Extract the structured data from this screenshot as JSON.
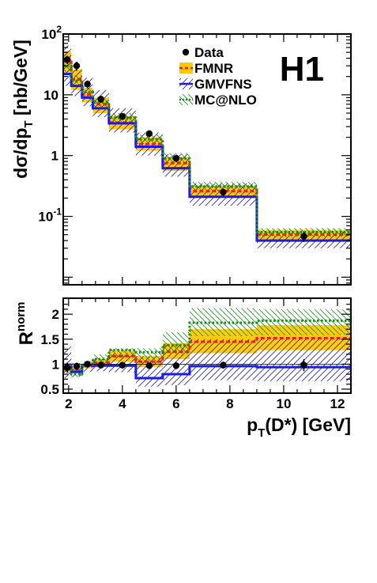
{
  "chart_data": [
    {
      "type": "step-histogram",
      "experiment_label": "H1",
      "ylabel": "dσ/dp_T [nb/GeV]",
      "ylabel_parts": {
        "main": "dσ/dp",
        "sub": "T",
        "unit": " [nb/GeV]"
      },
      "xlim": [
        1.8,
        12.5
      ],
      "ylim": [
        0.0075,
        100
      ],
      "y_scale": "log",
      "y_ticks": [
        {
          "value": 0.1,
          "base": "10",
          "exp": "-1"
        },
        {
          "value": 1,
          "base": "1",
          "exp": ""
        },
        {
          "value": 10,
          "base": "10",
          "exp": ""
        },
        {
          "value": 100,
          "base": "10",
          "exp": "2"
        }
      ],
      "bin_edges": [
        1.8,
        2.1,
        2.5,
        2.9,
        3.5,
        4.5,
        5.5,
        6.5,
        9.0,
        12.5
      ],
      "legend": [
        {
          "name": "Data",
          "style": "marker"
        },
        {
          "name": "FMNR",
          "style": "fmnr"
        },
        {
          "name": "GMVFNS",
          "style": "gmvfns"
        },
        {
          "name": "MC@NLO",
          "style": "mcnlo"
        }
      ],
      "data": {
        "name": "Data",
        "x": [
          1.95,
          2.3,
          2.7,
          3.2,
          4.0,
          5.0,
          6.0,
          7.75,
          10.75
        ],
        "y": [
          38,
          30,
          15,
          8.5,
          4.4,
          2.3,
          0.9,
          0.25,
          0.047
        ],
        "y_err": [
          6,
          5,
          2.2,
          1.1,
          0.55,
          0.3,
          0.12,
          0.035,
          0.009
        ]
      },
      "series": [
        {
          "name": "FMNR",
          "color": "#ffc800",
          "line_color": "#e82020",
          "values": [
            35,
            18,
            10,
            7.0,
            3.5,
            1.55,
            0.75,
            0.26,
            0.05
          ],
          "band_low": [
            21,
            12,
            7.5,
            5.0,
            2.7,
            1.2,
            0.56,
            0.2,
            0.039
          ],
          "band_high": [
            52,
            26,
            13,
            9.0,
            4.5,
            2.0,
            0.95,
            0.32,
            0.06
          ]
        },
        {
          "name": "GMVFNS",
          "color": "#1a1aee",
          "values": [
            22,
            14,
            9.0,
            6.0,
            3.4,
            1.4,
            0.62,
            0.21,
            0.04
          ],
          "band_low": [
            14,
            9.5,
            6.5,
            4.3,
            2.4,
            1.0,
            0.45,
            0.15,
            0.03
          ],
          "band_high": [
            65,
            30,
            19,
            12,
            6.0,
            2.4,
            1.05,
            0.35,
            0.055
          ]
        },
        {
          "name": "MC@NLO",
          "color": "#1a8a1a",
          "values": [
            30,
            17,
            11,
            7.5,
            4.2,
            1.85,
            0.9,
            0.31,
            0.055
          ],
          "band_low": [
            24,
            14,
            9.0,
            6.2,
            3.6,
            1.55,
            0.75,
            0.26,
            0.046
          ],
          "band_high": [
            38,
            21,
            13,
            9.0,
            5.0,
            2.2,
            1.1,
            0.37,
            0.064
          ]
        }
      ]
    },
    {
      "type": "step-histogram",
      "ylabel": "R^norm",
      "ylabel_parts": {
        "main": "R",
        "sup": "norm"
      },
      "xlabel": "p_T(D*) [GeV]",
      "xlabel_parts": {
        "main": "p",
        "sub": "T",
        "rest": "(D*) [GeV]"
      },
      "xlim": [
        1.8,
        12.5
      ],
      "ylim": [
        0.42,
        2.32
      ],
      "y_scale": "linear",
      "y_ticks": [
        {
          "value": 0.5,
          "label": "0.5"
        },
        {
          "value": 1,
          "label": "1"
        },
        {
          "value": 1.5,
          "label": "1.5"
        },
        {
          "value": 2,
          "label": "2"
        }
      ],
      "x_ticks": [
        {
          "value": 2,
          "label": "2"
        },
        {
          "value": 4,
          "label": "4"
        },
        {
          "value": 6,
          "label": "6"
        },
        {
          "value": 8,
          "label": "8"
        },
        {
          "value": 10,
          "label": "10"
        },
        {
          "value": 12,
          "label": "12"
        }
      ],
      "bin_edges": [
        1.8,
        2.1,
        2.5,
        2.9,
        3.5,
        4.5,
        5.5,
        6.5,
        9.0,
        12.5
      ],
      "data": {
        "name": "Data",
        "x": [
          1.95,
          2.3,
          2.7,
          3.2,
          4.0,
          5.0,
          6.0,
          7.75,
          10.75
        ],
        "y": [
          0.93,
          0.96,
          1.0,
          0.98,
          0.98,
          0.97,
          0.97,
          0.98,
          0.98
        ],
        "y_err": [
          0.1,
          0.07,
          0.05,
          0.05,
          0.05,
          0.06,
          0.07,
          0.07,
          0.12
        ]
      },
      "series": [
        {
          "name": "FMNR",
          "color": "#ffc800",
          "line_color": "#e82020",
          "values": [
            0.92,
            0.9,
            0.96,
            1.03,
            1.16,
            1.05,
            1.25,
            1.45,
            1.52
          ],
          "band_low": [
            0.84,
            0.82,
            0.92,
            0.97,
            1.05,
            0.94,
            1.1,
            1.22,
            1.28
          ],
          "band_high": [
            1.02,
            0.98,
            1.02,
            1.1,
            1.27,
            1.16,
            1.42,
            1.7,
            1.78
          ]
        },
        {
          "name": "GMVFNS",
          "color": "#1a1aee",
          "values": [
            0.95,
            0.85,
            0.98,
            0.97,
            0.97,
            0.72,
            0.8,
            0.96,
            0.94
          ],
          "band_low": [
            0.72,
            0.75,
            0.85,
            0.86,
            0.84,
            0.55,
            0.58,
            0.68,
            0.66
          ],
          "band_high": [
            1.35,
            1.02,
            1.06,
            1.12,
            1.22,
            1.16,
            1.4,
            1.5,
            1.52
          ]
        },
        {
          "name": "MC@NLO",
          "color": "#1a8a1a",
          "values": [
            0.9,
            0.8,
            1.0,
            1.1,
            1.28,
            1.24,
            1.38,
            1.83,
            1.87
          ],
          "band_low": [
            0.82,
            0.74,
            0.95,
            1.02,
            1.14,
            1.06,
            1.2,
            1.56,
            1.58
          ],
          "band_high": [
            1.0,
            0.88,
            1.06,
            1.2,
            1.32,
            1.32,
            1.64,
            2.12,
            2.1
          ]
        }
      ]
    }
  ]
}
